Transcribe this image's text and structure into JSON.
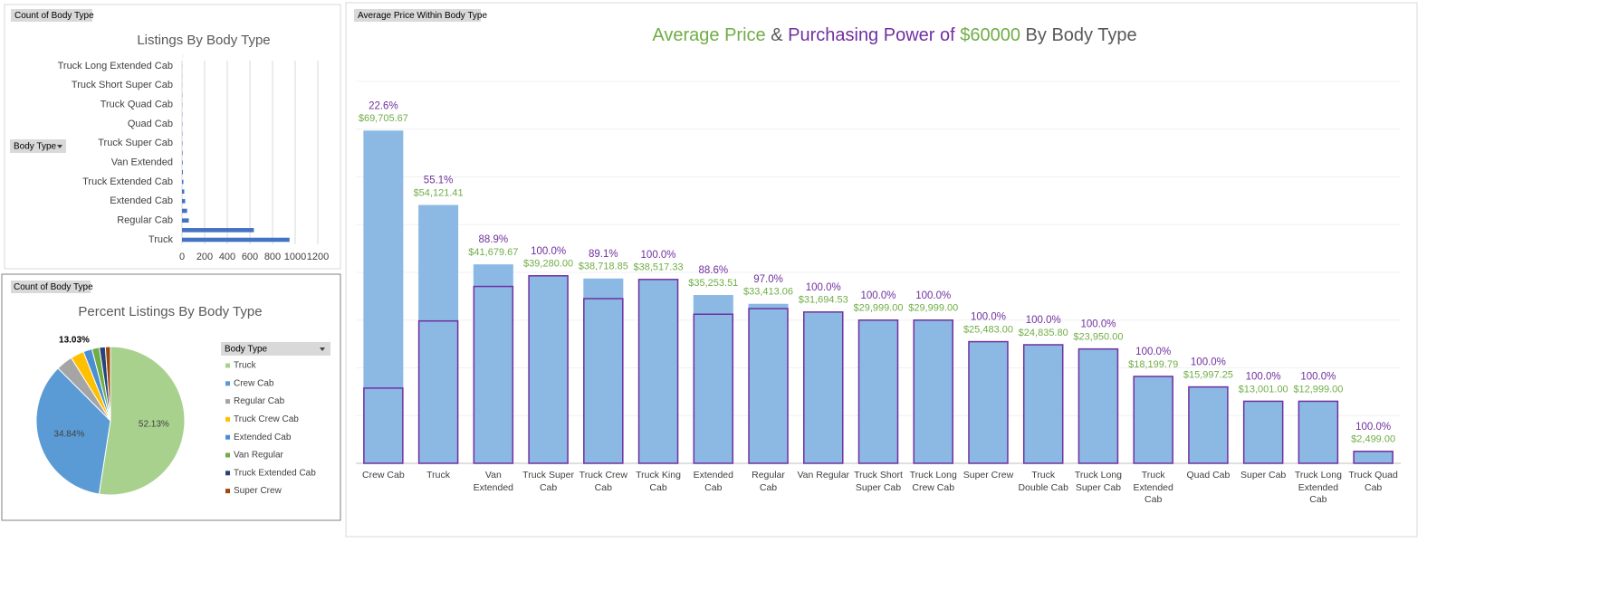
{
  "chart_data": [
    {
      "type": "bar",
      "orientation": "horizontal",
      "field_button": "Count of Body Type",
      "filter_button": "Body Type",
      "title": "Listings By Body Type",
      "categories": [
        "Truck",
        null,
        "Regular Cab",
        null,
        "Extended Cab",
        null,
        "Truck Extended Cab",
        null,
        "Van Extended",
        null,
        "Truck Super Cab",
        null,
        "Quad Cab",
        null,
        "Truck Quad Cab",
        null,
        "Truck Short Super Cab",
        null,
        "Truck Long Extended Cab",
        null
      ],
      "values": [
        950,
        635,
        60,
        45,
        28,
        20,
        12,
        8,
        6,
        5,
        4,
        3,
        3,
        2,
        2,
        2,
        1,
        1,
        1,
        1
      ],
      "color": "#4472c4",
      "xlim": [
        0,
        1200
      ],
      "xticks": [
        0,
        200,
        400,
        600,
        800,
        1000,
        1200
      ],
      "grid": true
    },
    {
      "type": "pie",
      "field_button": "Count of Body Type",
      "filter_button": "Body Type",
      "title": "Percent Listings By Body Type",
      "categories": [
        "Truck",
        "Crew Cab",
        "Regular Cab",
        "Truck Crew Cab",
        "Extended Cab",
        "Van Regular",
        "Truck Extended Cab",
        "Super Crew"
      ],
      "values": [
        52.13,
        34.84,
        3.6,
        2.9,
        1.9,
        1.6,
        1.3,
        1.1
      ],
      "value_labels": [
        "52.13%",
        "34.84%",
        null,
        null,
        null,
        null,
        null,
        null
      ],
      "colors": [
        "#a9d18e",
        "#5b9bd5",
        "#a5a5a5",
        "#ffc000",
        "#4a8fd6",
        "#70ad47",
        "#264478",
        "#9e480e"
      ],
      "annotation": "13.03%",
      "legend": "right"
    },
    {
      "type": "bar",
      "field_button": "Average Price Within Body Type",
      "title": [
        "Average Price",
        "&",
        "Purchasing Power of",
        "$60000",
        "By Body Type"
      ],
      "title_colors": [
        "#70ad47",
        "#595959",
        "#7030a0",
        "#70ad47",
        "#595959"
      ],
      "categories": [
        "Crew Cab",
        "Truck",
        "Van Extended",
        "Truck Super Cab",
        "Truck Crew Cab",
        "Truck King Cab",
        "Extended Cab",
        "Regular Cab",
        "Van Regular",
        "Truck Short Super Cab",
        "Truck Long Crew Cab",
        "Super Crew",
        "Truck Double Cab",
        "Truck Long Super Cab",
        "Truck Extended Cab",
        "Quad Cab",
        "Super Cab",
        "Truck Long Extended Cab",
        "Truck Quad Cab"
      ],
      "series": [
        {
          "color": "#8cb9e4",
          "label_color": "#70ad47",
          "values": [
            69705.67,
            54121.41,
            41679.67,
            39280.0,
            38718.85,
            38517.33,
            35253.51,
            33413.06,
            31694.53,
            29999.0,
            29999.0,
            25483.0,
            24835.8,
            23950.0,
            18199.79,
            15997.25,
            13001.0,
            12999.0,
            2499.0
          ],
          "value_labels": [
            "$69,705.67",
            "$54,121.41",
            "$41,679.67",
            "$39,280.00",
            "$38,718.85",
            "$38,517.33",
            "$35,253.51",
            "$33,413.06",
            "$31,694.53",
            "$29,999.00",
            "$29,999.00",
            "$25,483.00",
            "$24,835.80",
            "$23,950.00",
            "$18,199.79",
            "$15,997.25",
            "$13,001.00",
            "$12,999.00",
            "$2,499.00"
          ]
        },
        {
          "color": "#8cb9e4",
          "outline": "#7030a0",
          "values": [
            15753,
            29821,
            37053,
            39280,
            34499,
            38517,
            31235,
            32411,
            31695,
            29999,
            29999,
            25483,
            24836,
            23950,
            18200,
            15997,
            13001,
            12999,
            2499
          ]
        }
      ],
      "percent_labels": [
        "22.6%",
        "55.1%",
        "88.9%",
        "100.0%",
        "89.1%",
        "100.0%",
        "88.6%",
        "97.0%",
        "100.0%",
        "100.0%",
        "100.0%",
        "100.0%",
        "100.0%",
        "100.0%",
        "100.0%",
        "100.0%",
        "100.0%",
        "100.0%",
        "100.0%"
      ],
      "percent_color": "#7030a0",
      "ylim": [
        0,
        80000
      ],
      "yticks": [
        0,
        10000,
        20000,
        30000,
        40000,
        50000,
        60000,
        70000,
        80000
      ],
      "grid": true
    }
  ]
}
